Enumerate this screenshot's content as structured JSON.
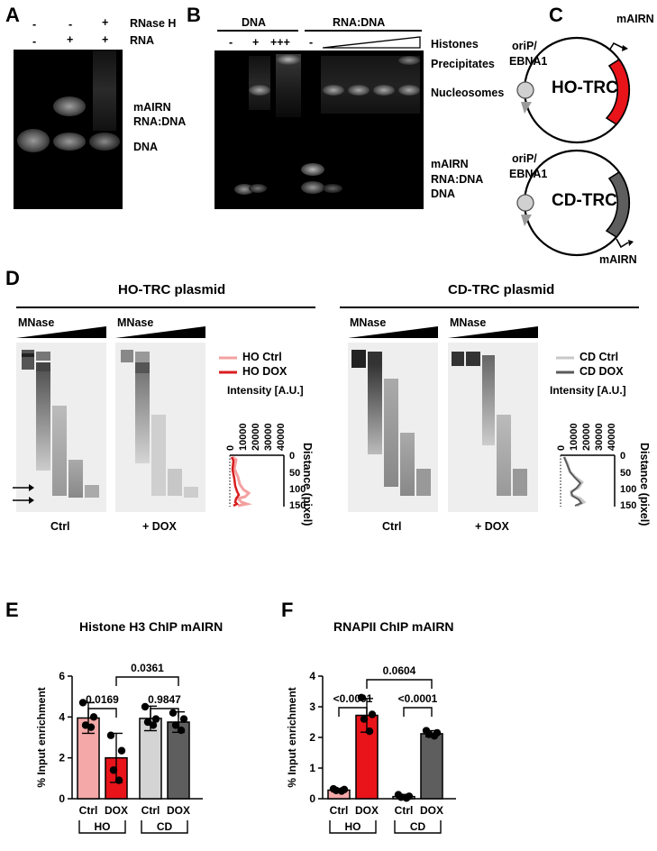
{
  "panelA": {
    "label": "A",
    "row1_label": "RNase H",
    "row1_values": [
      "-",
      "-",
      "+"
    ],
    "row2_label": "RNA",
    "row2_values": [
      "-",
      "+",
      "+"
    ],
    "band_label_1": "mAIRN",
    "band_label_2": "RNA:DNA",
    "band_label_3": "DNA"
  },
  "panelB": {
    "label": "B",
    "group1": "DNA",
    "group2": "RNA:DNA",
    "lane_values": [
      "-",
      "+",
      "+++",
      "-"
    ],
    "histones": "Histones",
    "precipitates": "Precipitates",
    "nucleosomes": "Nucleosomes",
    "mairn": "mAIRN",
    "rnadna": "RNA:DNA",
    "dna": "DNA"
  },
  "panelC": {
    "label": "C",
    "top_mairn": "mAIRN",
    "top_origin_1": "oriP/",
    "top_origin_2": "EBNA1",
    "top_name": "HO-TRC",
    "bottom_origin_1": "oriP/",
    "bottom_origin_2": "EBNA1",
    "bottom_name": "CD-TRC",
    "bottom_mairn": "mAIRN",
    "colors": {
      "ho": "#e8141a",
      "cd": "#5e5e5e"
    }
  },
  "panelD": {
    "label": "D",
    "left_title": "HO-TRC plasmid",
    "right_title": "CD-TRC plasmid",
    "mnase": "MNase",
    "ctrl": "Ctrl",
    "dox": "+ DOX",
    "legend_left": [
      "HO Ctrl",
      "HO DOX"
    ],
    "legend_right": [
      "CD Ctrl",
      "CD DOX"
    ],
    "intensity_label": "Intensity [A.U.]",
    "distance_label": "Distance (pixel)",
    "x_ticks": [
      "0",
      "10000",
      "20000",
      "30000",
      "40000"
    ],
    "y_ticks": [
      "0",
      "50",
      "100",
      "150"
    ],
    "colors": {
      "ho_ctrl": "#f4a0a0",
      "ho_dox": "#d81e1e",
      "cd_ctrl": "#c8c8c8",
      "cd_dox": "#5a5a5a"
    }
  },
  "panelE": {
    "label": "E"
  },
  "panelF": {
    "label": "F"
  },
  "chart_data": [
    {
      "type": "bar",
      "title": "Histone H3 ChIP mAIRN",
      "ylabel": "% Input enrichment",
      "ylim": [
        0,
        6
      ],
      "yticks": [
        0,
        2,
        4,
        6
      ],
      "categories": [
        "Ctrl",
        "DOX",
        "Ctrl",
        "DOX"
      ],
      "groups": [
        "HO",
        "CD"
      ],
      "values": [
        3.95,
        2.0,
        3.93,
        3.75
      ],
      "errors": [
        0.75,
        1.2,
        0.6,
        0.5
      ],
      "points": [
        [
          4.7,
          4.0,
          3.6,
          3.5
        ],
        [
          3.1,
          2.35,
          1.4,
          0.9
        ],
        [
          4.5,
          3.9,
          3.75,
          3.6
        ],
        [
          4.2,
          3.9,
          3.6,
          3.35
        ]
      ],
      "colors": [
        "#f4a8a8",
        "#e8141a",
        "#d4d4d4",
        "#5e5e5e"
      ],
      "brackets": [
        {
          "from": 0,
          "to": 1,
          "label": "0.0169"
        },
        {
          "from": 2,
          "to": 3,
          "label": "0.9847"
        },
        {
          "from": 1,
          "to": 3,
          "label": "0.0361"
        }
      ]
    },
    {
      "type": "bar",
      "title": "RNAPII ChIP mAIRN",
      "ylabel": "% Input enrichment",
      "ylim": [
        0,
        4
      ],
      "yticks": [
        0,
        1,
        2,
        3,
        4
      ],
      "categories": [
        "Ctrl",
        "DOX",
        "Ctrl",
        "DOX"
      ],
      "groups": [
        "HO",
        "CD"
      ],
      "values": [
        0.28,
        2.72,
        0.07,
        2.12
      ],
      "errors": [
        0.05,
        0.55,
        0.07,
        0.1
      ],
      "points": [
        [
          0.32,
          0.3,
          0.27,
          0.25
        ],
        [
          3.3,
          2.75,
          2.6,
          2.2
        ],
        [
          0.13,
          0.08,
          0.05,
          0.02
        ],
        [
          2.22,
          2.15,
          2.1,
          2.05
        ]
      ],
      "colors": [
        "#f4a8a8",
        "#e8141a",
        "#d4d4d4",
        "#5e5e5e"
      ],
      "brackets": [
        {
          "from": 0,
          "to": 1,
          "label": "<0.0001"
        },
        {
          "from": 2,
          "to": 3,
          "label": "<0.0001"
        },
        {
          "from": 1,
          "to": 3,
          "label": "0.0604"
        }
      ]
    }
  ]
}
